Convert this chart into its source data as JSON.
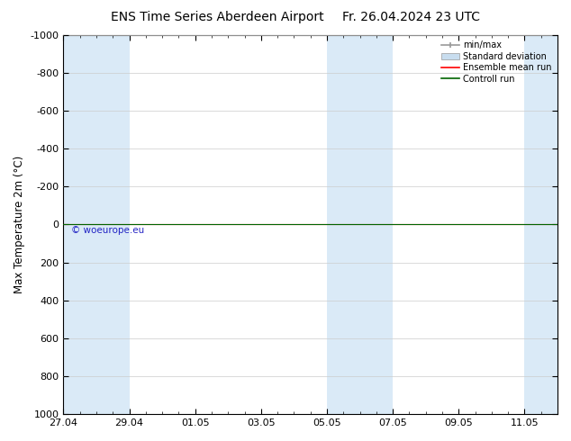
{
  "title": "ENS Time Series Aberdeen Airport",
  "title2": "Fr. 26.04.2024 23 UTC",
  "ylabel": "Max Temperature 2m (°C)",
  "watermark": "© woeurope.eu",
  "ylim_top": -1000,
  "ylim_bottom": 1000,
  "yticks": [
    -1000,
    -800,
    -600,
    -400,
    -200,
    0,
    200,
    400,
    600,
    800,
    1000
  ],
  "xtick_labels": [
    "27.04",
    "29.04",
    "01.05",
    "03.05",
    "05.05",
    "07.05",
    "09.05",
    "11.05"
  ],
  "xtick_positions": [
    0,
    2,
    4,
    6,
    8,
    10,
    12,
    14
  ],
  "total_days": 15,
  "bg_color": "#ffffff",
  "plot_bg_color": "#ffffff",
  "shade_color": "#daeaf7",
  "shade_intervals": [
    [
      0,
      1
    ],
    [
      1,
      2
    ],
    [
      8,
      9
    ],
    [
      9,
      10
    ],
    [
      14,
      15
    ]
  ],
  "control_run_y": 0.0,
  "ensemble_mean_y": 0.0,
  "legend_labels": [
    "min/max",
    "Standard deviation",
    "Ensemble mean run",
    "Controll run"
  ],
  "legend_colors": [
    "#aaaaaa",
    "#c8ddef",
    "#ff0000",
    "#006400"
  ],
  "minmax_color": "#999999",
  "title_fontsize": 10,
  "axis_fontsize": 8.5,
  "tick_fontsize": 8,
  "watermark_color": "#0000bb"
}
